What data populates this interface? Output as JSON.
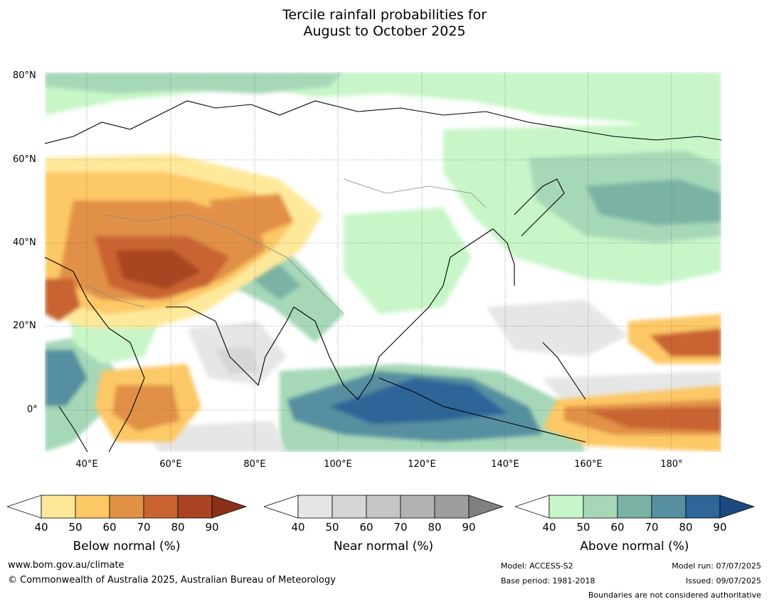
{
  "title": {
    "line1": "Tercile rainfall probabilities for",
    "line2": "August to October 2025"
  },
  "map": {
    "lat_labels": [
      "80°N",
      "60°N",
      "40°N",
      "20°N",
      "0°"
    ],
    "lon_labels": [
      "40°E",
      "60°E",
      "80°E",
      "100°E",
      "120°E",
      "140°E",
      "160°E",
      "180°"
    ]
  },
  "colorbars": [
    {
      "name": "below",
      "title": "Below normal (%)",
      "ticks": [
        "40",
        "50",
        "60",
        "70",
        "80",
        "90"
      ],
      "colors": [
        "#ffffff",
        "#fee99b",
        "#fdc866",
        "#e19146",
        "#c96432",
        "#aa4424",
        "#8a3018"
      ]
    },
    {
      "name": "near",
      "title": "Near normal (%)",
      "ticks": [
        "40",
        "50",
        "60",
        "70",
        "80",
        "90"
      ],
      "colors": [
        "#ffffff",
        "#e6e6e6",
        "#d6d6d6",
        "#c6c6c6",
        "#b2b2b2",
        "#9e9e9e",
        "#808080"
      ]
    },
    {
      "name": "above",
      "title": "Above normal (%)",
      "ticks": [
        "40",
        "50",
        "60",
        "70",
        "80",
        "90"
      ],
      "colors": [
        "#ffffff",
        "#c8f6c8",
        "#a6d8b8",
        "#7ab2a4",
        "#5790a0",
        "#2f6598",
        "#1a4a80"
      ]
    }
  ],
  "footer": {
    "website": "www.bom.gov.au/climate",
    "copyright": "© Commonwealth of Australia 2025, Australian Bureau of Meteorology",
    "model": "Model: ACCESS-S2",
    "base_period": "Base period: 1981-2018",
    "model_run": "Model run: 07/07/2025",
    "issued": "Issued: 09/07/2025",
    "boundaries_note": "Boundaries are not considered authoritative"
  }
}
